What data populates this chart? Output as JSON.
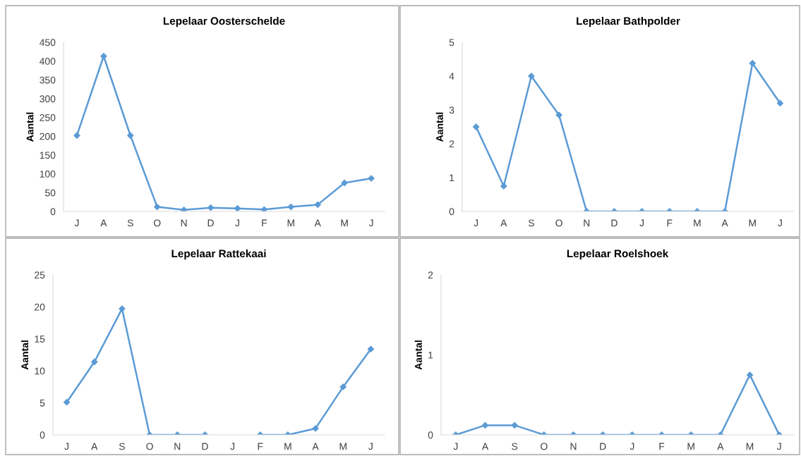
{
  "chart_data": [
    {
      "type": "line",
      "title": "Lepelaar Oosterschelde",
      "ylabel": "Aantal",
      "categories": [
        "J",
        "A",
        "S",
        "O",
        "N",
        "D",
        "J",
        "F",
        "M",
        "A",
        "M",
        "J"
      ],
      "series": [
        {
          "color": "#5b9bd5",
          "values": [
            202,
            413,
            202,
            12,
            4,
            10,
            8,
            5,
            12,
            18,
            76,
            88
          ]
        }
      ],
      "ylim": [
        0,
        450
      ],
      "yticks": [
        0,
        50,
        100,
        150,
        200,
        250,
        300,
        350,
        400,
        450
      ],
      "marker": "diamond",
      "line_style": "solid",
      "grid": false,
      "legend": false
    },
    {
      "type": "line",
      "title": "Lepelaar Bathpolder",
      "ylabel": "Aantal",
      "categories": [
        "J",
        "A",
        "S",
        "O",
        "N",
        "D",
        "J",
        "F",
        "M",
        "A",
        "M",
        "J"
      ],
      "series": [
        {
          "color": "#5b9bd5",
          "values": [
            2.5,
            0.75,
            4,
            2.85,
            0,
            0,
            0,
            0,
            0,
            0,
            4.38,
            3.2
          ]
        }
      ],
      "ylim": [
        0,
        5
      ],
      "yticks": [
        0,
        1,
        2,
        3,
        4,
        5
      ],
      "marker": "diamond",
      "line_style": "solid",
      "grid": false,
      "legend": false
    },
    {
      "type": "line",
      "title": "Lepelaar Rattekaai",
      "ylabel": "Aantal",
      "categories": [
        "J",
        "A",
        "S",
        "O",
        "N",
        "D",
        "J",
        "F",
        "M",
        "A",
        "M",
        "J"
      ],
      "series": [
        {
          "color": "#5b9bd5",
          "values": [
            5.1,
            11.4,
            19.7,
            0,
            0,
            0,
            null,
            0,
            0,
            1,
            7.5,
            13.4
          ]
        }
      ],
      "ylim": [
        0,
        25
      ],
      "yticks": [
        0,
        5,
        10,
        15,
        20,
        25
      ],
      "marker": "diamond",
      "line_style": "solid",
      "grid": false,
      "legend": false
    },
    {
      "type": "line",
      "title": "Lepelaar Roelshoek",
      "ylabel": "Aantal",
      "categories": [
        "J",
        "A",
        "S",
        "O",
        "N",
        "D",
        "J",
        "F",
        "M",
        "A",
        "M",
        "J"
      ],
      "series": [
        {
          "color": "#5b9bd5",
          "values": [
            0,
            0.12,
            0.12,
            0,
            0,
            0,
            0,
            0,
            0,
            0,
            0.75,
            0
          ]
        }
      ],
      "ylim": [
        0,
        2
      ],
      "yticks": [
        0,
        1,
        2
      ],
      "marker": "diamond",
      "line_style": "solid",
      "grid": false,
      "legend": false
    }
  ]
}
